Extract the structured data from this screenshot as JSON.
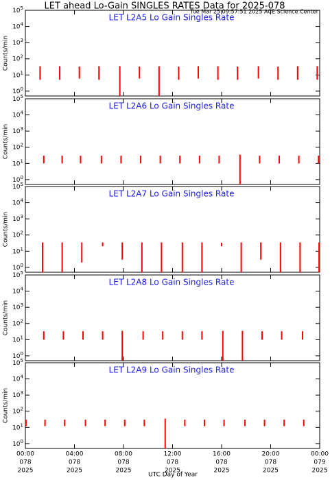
{
  "title": "LET ahead Lo-Gain SINGLES RATES Data for 2025-078",
  "subtitle": "Tue Mar 25 09:57:51 2025 ACE Science Center",
  "xlabel": "UTC Day of Year",
  "chart_data": [
    {
      "type": "spike",
      "title": "LET L2A5 Lo Gain Singles Rate",
      "ylabel": "Counts/min",
      "color": "#ff0000",
      "log": true,
      "xlim": [
        0,
        24
      ],
      "xticks": [
        0,
        4,
        8,
        12,
        16,
        20,
        24
      ],
      "ylim": [
        0.5,
        100000
      ],
      "yticks": [
        {
          "value": 1,
          "label": [
            "10",
            "0"
          ]
        },
        {
          "value": 10,
          "label": [
            "10",
            "1"
          ]
        },
        {
          "value": 100,
          "label": [
            "10",
            "2"
          ]
        },
        {
          "value": 1000,
          "label": [
            "10",
            "3"
          ]
        },
        {
          "value": 10000,
          "label": [
            "10",
            "4"
          ]
        },
        {
          "value": 100000,
          "label": [
            "10",
            "5"
          ]
        }
      ],
      "x": [
        1.2,
        2.8,
        4.4,
        6.0,
        7.7,
        9.3,
        10.9,
        12.5,
        14.1,
        15.7,
        17.3,
        19.0,
        20.6,
        22.2,
        23.8
      ],
      "low": [
        5,
        5,
        6,
        5,
        0.5,
        6,
        0.5,
        5,
        6,
        5,
        5,
        6,
        5,
        5,
        5
      ],
      "high": [
        35,
        35,
        33,
        35,
        35,
        33,
        35,
        33,
        35,
        35,
        33,
        35,
        33,
        35,
        35
      ]
    },
    {
      "type": "spike",
      "title": "LET L2A6 Lo Gain Singles Rate",
      "ylabel": "Counts/min",
      "color": "#ff0000",
      "log": true,
      "xlim": [
        0,
        24
      ],
      "xticks": [
        0,
        4,
        8,
        12,
        16,
        20,
        24
      ],
      "ylim": [
        0.5,
        100000
      ],
      "yticks": [
        {
          "value": 1,
          "label": [
            "10",
            "0"
          ]
        },
        {
          "value": 10,
          "label": [
            "10",
            "1"
          ]
        },
        {
          "value": 100,
          "label": [
            "10",
            "2"
          ]
        },
        {
          "value": 1000,
          "label": [
            "10",
            "3"
          ]
        },
        {
          "value": 10000,
          "label": [
            "10",
            "4"
          ]
        },
        {
          "value": 100000,
          "label": [
            "10",
            "5"
          ]
        }
      ],
      "x": [
        1.5,
        3.0,
        4.5,
        6.2,
        7.8,
        9.4,
        11.0,
        12.6,
        14.2,
        15.8,
        17.5,
        19.1,
        20.7,
        22.3,
        23.9
      ],
      "low": [
        10,
        10,
        10,
        10,
        10,
        10,
        10,
        10,
        10,
        10,
        0.5,
        10,
        10,
        10,
        10
      ],
      "high": [
        30,
        30,
        30,
        30,
        30,
        30,
        30,
        30,
        30,
        30,
        35,
        30,
        30,
        30,
        30
      ]
    },
    {
      "type": "spike",
      "title": "LET L2A7 Lo Gain Singles Rate",
      "ylabel": "Counts/min",
      "color": "#ff0000",
      "log": true,
      "xlim": [
        0,
        24
      ],
      "xticks": [
        0,
        4,
        8,
        12,
        16,
        20,
        24
      ],
      "ylim": [
        0.5,
        100000
      ],
      "yticks": [
        {
          "value": 1,
          "label": [
            "10",
            "0"
          ]
        },
        {
          "value": 10,
          "label": [
            "10",
            "1"
          ]
        },
        {
          "value": 100,
          "label": [
            "10",
            "2"
          ]
        },
        {
          "value": 1000,
          "label": [
            "10",
            "3"
          ]
        },
        {
          "value": 10000,
          "label": [
            "10",
            "4"
          ]
        },
        {
          "value": 100000,
          "label": [
            "10",
            "5"
          ]
        }
      ],
      "x": [
        1.4,
        3.0,
        4.6,
        6.3,
        7.9,
        9.5,
        11.1,
        12.8,
        14.4,
        16.0,
        17.6,
        19.2,
        20.8,
        22.4,
        23.95
      ],
      "low": [
        0.5,
        0.5,
        2,
        20,
        3,
        0.5,
        0.5,
        0.5,
        0.5,
        20,
        0.5,
        3,
        0.5,
        0.5,
        0.5
      ],
      "high": [
        35,
        35,
        35,
        35,
        35,
        35,
        35,
        35,
        35,
        33,
        35,
        35,
        35,
        35,
        35
      ]
    },
    {
      "type": "spike",
      "title": "LET L2A8 Lo Gain Singles Rate",
      "ylabel": "Counts/min",
      "color": "#ff0000",
      "log": true,
      "xlim": [
        0,
        24
      ],
      "xticks": [
        0,
        4,
        8,
        12,
        16,
        20,
        24
      ],
      "ylim": [
        0.5,
        100000
      ],
      "yticks": [
        {
          "value": 1,
          "label": [
            "10",
            "0"
          ]
        },
        {
          "value": 10,
          "label": [
            "10",
            "1"
          ]
        },
        {
          "value": 100,
          "label": [
            "10",
            "2"
          ]
        },
        {
          "value": 1000,
          "label": [
            "10",
            "3"
          ]
        },
        {
          "value": 10000,
          "label": [
            "10",
            "4"
          ]
        },
        {
          "value": 100000,
          "label": [
            "10",
            "5"
          ]
        }
      ],
      "x": [
        1.5,
        3.1,
        4.7,
        6.3,
        7.9,
        9.6,
        11.2,
        12.8,
        14.4,
        16.1,
        17.7,
        19.3,
        20.9,
        22.6
      ],
      "low": [
        10,
        10,
        10,
        10,
        0.5,
        10,
        10,
        10,
        10,
        0.5,
        0.5,
        10,
        10,
        10
      ],
      "high": [
        33,
        33,
        33,
        33,
        35,
        33,
        33,
        33,
        33,
        35,
        35,
        33,
        33,
        33
      ]
    },
    {
      "type": "spike",
      "title": "LET L2A9 Lo Gain Singles Rate",
      "ylabel": "Counts/min",
      "color": "#ff0000",
      "log": true,
      "xlim": [
        0,
        24
      ],
      "ylim": [
        0.5,
        100000
      ],
      "xticks": [
        {
          "value": 0,
          "label": [
            "00:00",
            "078",
            "2025"
          ]
        },
        {
          "value": 4,
          "label": [
            "04:00",
            "078",
            "2025"
          ]
        },
        {
          "value": 8,
          "label": [
            "08:00",
            "078",
            "2025"
          ]
        },
        {
          "value": 12,
          "label": [
            "12:00",
            "078",
            "2025"
          ]
        },
        {
          "value": 16,
          "label": [
            "16:00",
            "078",
            "2025"
          ]
        },
        {
          "value": 20,
          "label": [
            "20:00",
            "078",
            "2025"
          ]
        },
        {
          "value": 24,
          "label": [
            "00:00",
            "079",
            "2025"
          ]
        }
      ],
      "yticks": [
        {
          "value": 1,
          "label": [
            "10",
            "0"
          ]
        },
        {
          "value": 10,
          "label": [
            "10",
            "1"
          ]
        },
        {
          "value": 100,
          "label": [
            "10",
            "2"
          ]
        },
        {
          "value": 1000,
          "label": [
            "10",
            "3"
          ]
        },
        {
          "value": 10000,
          "label": [
            "10",
            "4"
          ]
        },
        {
          "value": 100000,
          "label": [
            "10",
            "5"
          ]
        }
      ],
      "x": [
        0.05,
        1.6,
        3.2,
        4.9,
        6.5,
        8.1,
        9.7,
        11.4,
        13.0,
        14.6,
        16.2,
        17.9,
        19.5,
        21.1,
        22.7
      ],
      "low": [
        12,
        12,
        12,
        12,
        12,
        12,
        12,
        0.5,
        12,
        12,
        12,
        12,
        12,
        12,
        12
      ],
      "high": [
        30,
        30,
        30,
        30,
        30,
        30,
        30,
        35,
        30,
        30,
        30,
        30,
        30,
        30,
        30
      ]
    }
  ]
}
